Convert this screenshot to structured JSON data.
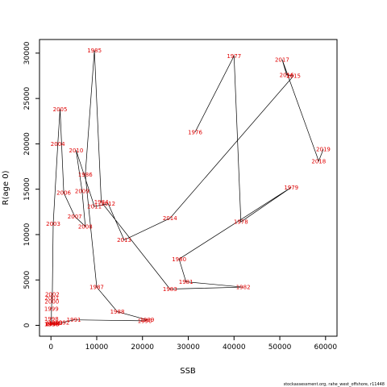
{
  "chart_data": {
    "type": "scatter",
    "xlabel": "SSB",
    "ylabel": "R(age 0)",
    "xlim": [
      -2500,
      62500
    ],
    "ylim": [
      -1200,
      31500
    ],
    "xticks": [
      0,
      10000,
      20000,
      30000,
      40000,
      50000,
      60000
    ],
    "yticks": [
      0,
      5000,
      10000,
      15000,
      20000,
      25000,
      30000
    ],
    "line_color": "#000000",
    "label_color": "#e00000",
    "footnote": "stockassessment.org, rahe_west_offshore, r11448",
    "points": [
      {
        "year": "1976",
        "x": 31500,
        "y": 21300
      },
      {
        "year": "1977",
        "x": 40000,
        "y": 29700
      },
      {
        "year": "1978",
        "x": 41500,
        "y": 11400
      },
      {
        "year": "1979",
        "x": 52500,
        "y": 15200
      },
      {
        "year": "1980",
        "x": 28000,
        "y": 7300
      },
      {
        "year": "1981",
        "x": 29500,
        "y": 4800
      },
      {
        "year": "1982",
        "x": 42000,
        "y": 4200
      },
      {
        "year": "1983",
        "x": 26000,
        "y": 4000
      },
      {
        "year": "1984",
        "x": 11000,
        "y": 13600
      },
      {
        "year": "1985",
        "x": 9500,
        "y": 30300
      },
      {
        "year": "1986",
        "x": 7500,
        "y": 16600
      },
      {
        "year": "1987",
        "x": 10000,
        "y": 4200
      },
      {
        "year": "1988",
        "x": 14500,
        "y": 1500
      },
      {
        "year": "1989",
        "x": 21000,
        "y": 600
      },
      {
        "year": "1990",
        "x": 20500,
        "y": 500
      },
      {
        "year": "1991",
        "x": 5000,
        "y": 600
      },
      {
        "year": "1992",
        "x": 2500,
        "y": 300
      },
      {
        "year": "1993",
        "x": 1000,
        "y": 250
      },
      {
        "year": "1994",
        "x": 500,
        "y": 200
      },
      {
        "year": "1995",
        "x": 300,
        "y": 150
      },
      {
        "year": "1996",
        "x": 200,
        "y": 150
      },
      {
        "year": "1997",
        "x": 100,
        "y": 150
      },
      {
        "year": "1998",
        "x": 100,
        "y": 700
      },
      {
        "year": "1999",
        "x": 100,
        "y": 1800
      },
      {
        "year": "2000",
        "x": 200,
        "y": 2600
      },
      {
        "year": "2001",
        "x": 200,
        "y": 3000
      },
      {
        "year": "2002",
        "x": 300,
        "y": 3400
      },
      {
        "year": "2003",
        "x": 500,
        "y": 11200
      },
      {
        "year": "2004",
        "x": 1500,
        "y": 20000
      },
      {
        "year": "2005",
        "x": 2000,
        "y": 23800
      },
      {
        "year": "2006",
        "x": 2800,
        "y": 14600
      },
      {
        "year": "2007",
        "x": 5200,
        "y": 12000
      },
      {
        "year": "2008",
        "x": 7500,
        "y": 10900
      },
      {
        "year": "2009",
        "x": 6800,
        "y": 14800
      },
      {
        "year": "2010",
        "x": 5500,
        "y": 19300
      },
      {
        "year": "2011",
        "x": 9500,
        "y": 13100
      },
      {
        "year": "2012",
        "x": 12500,
        "y": 13400
      },
      {
        "year": "2013",
        "x": 16000,
        "y": 9400
      },
      {
        "year": "2014",
        "x": 26000,
        "y": 11800
      },
      {
        "year": "2015",
        "x": 53000,
        "y": 27500
      },
      {
        "year": "2016",
        "x": 51500,
        "y": 27600
      },
      {
        "year": "2017",
        "x": 50500,
        "y": 29300
      },
      {
        "year": "2018",
        "x": 58500,
        "y": 18100
      },
      {
        "year": "2019",
        "x": 59500,
        "y": 19400
      }
    ]
  }
}
